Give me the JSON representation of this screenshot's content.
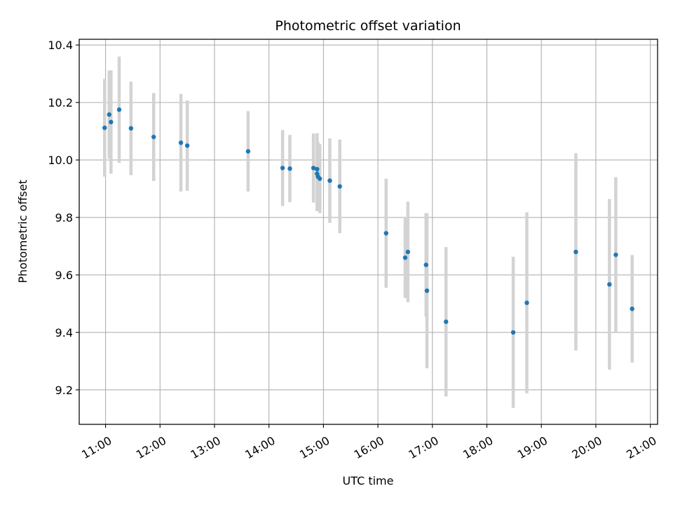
{
  "chart_data": {
    "type": "scatter",
    "title": "Photometric offset variation",
    "xlabel": "UTC time",
    "ylabel": "Photometric offset",
    "xlim": [
      "10:31",
      "21:08"
    ],
    "ylim": [
      9.08,
      10.42
    ],
    "x_ticks": [
      "11:00",
      "12:00",
      "13:00",
      "14:00",
      "15:00",
      "16:00",
      "17:00",
      "18:00",
      "19:00",
      "20:00",
      "21:00"
    ],
    "y_ticks": [
      9.2,
      9.4,
      9.6,
      9.8,
      10.0,
      10.2,
      10.4
    ],
    "y_tick_labels": [
      "9.2",
      "9.4",
      "9.6",
      "9.8",
      "10.0",
      "10.2",
      "10.4"
    ],
    "grid": true,
    "colors": {
      "points": "#1f77b4",
      "error_bars": "#d3d3d3",
      "grid": "#b0b0b0",
      "axes": "#000000"
    },
    "series": [
      {
        "x": [
          "10:59",
          "11:04",
          "11:06",
          "11:15",
          "11:28",
          "11:53",
          "12:23",
          "12:30",
          "13:37",
          "14:15",
          "14:23",
          "14:49",
          "14:53",
          "14:53",
          "14:54",
          "14:56",
          "15:07",
          "15:18",
          "16:09",
          "16:30",
          "16:33",
          "16:53",
          "16:54",
          "17:15",
          "18:29",
          "18:44",
          "19:38",
          "20:15",
          "20:22",
          "20:40"
        ],
        "y": [
          10.112,
          10.158,
          10.132,
          10.175,
          10.11,
          10.08,
          10.06,
          10.05,
          10.03,
          9.972,
          9.97,
          9.972,
          9.968,
          9.952,
          9.942,
          9.935,
          9.928,
          9.908,
          9.745,
          9.66,
          9.68,
          9.635,
          9.545,
          9.437,
          9.4,
          9.503,
          9.68,
          9.567,
          9.67,
          9.482
        ],
        "yerr": [
          0.17,
          0.153,
          0.18,
          0.185,
          0.163,
          0.153,
          0.17,
          0.157,
          0.14,
          0.132,
          0.117,
          0.12,
          0.125,
          0.13,
          0.12,
          0.12,
          0.147,
          0.163,
          0.19,
          0.14,
          0.175,
          0.18,
          0.27,
          0.26,
          0.263,
          0.315,
          0.343,
          0.297,
          0.27,
          0.187
        ]
      }
    ]
  }
}
